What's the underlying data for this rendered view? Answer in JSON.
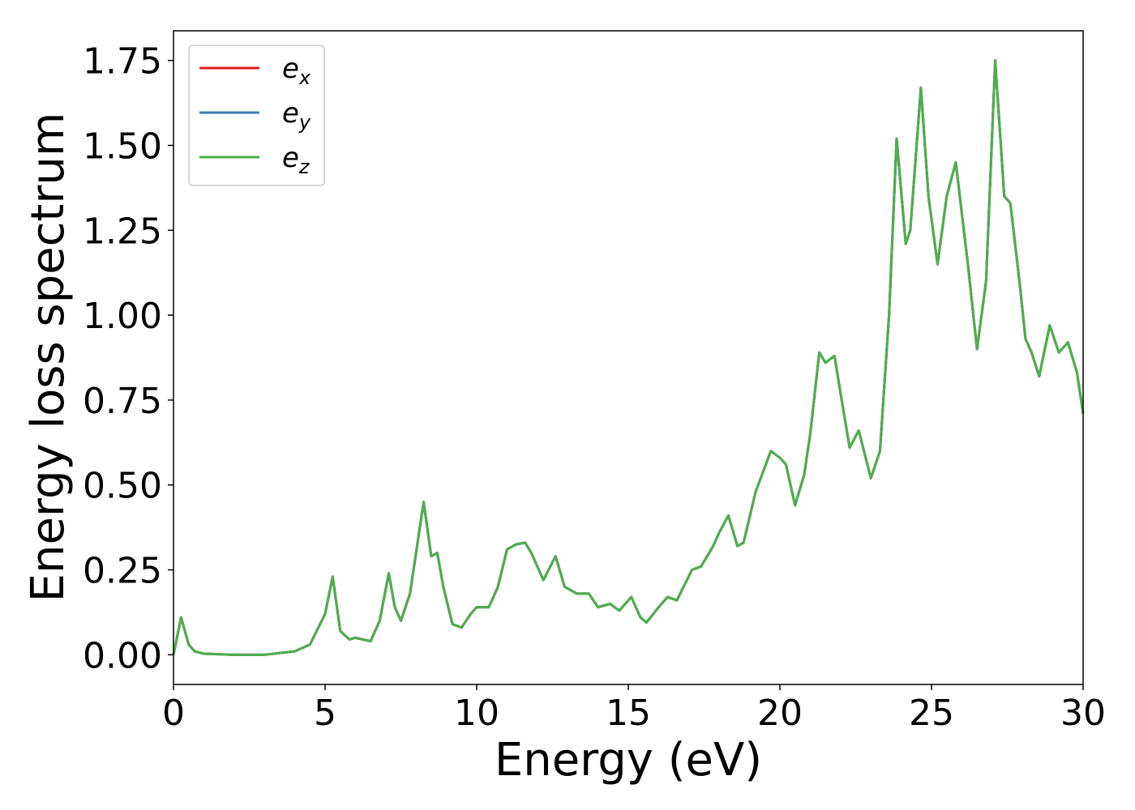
{
  "chart_data": {
    "type": "line",
    "xlabel": "Energy (eV)",
    "ylabel": "Energy loss spectrum",
    "x": [
      0,
      0.25,
      0.5,
      0.7,
      1,
      2,
      3,
      4,
      4.5,
      5.0,
      5.25,
      5.5,
      5.8,
      6.0,
      6.5,
      6.8,
      7.1,
      7.3,
      7.5,
      7.8,
      8.0,
      8.25,
      8.5,
      8.7,
      8.9,
      9.2,
      9.5,
      9.8,
      10,
      10.4,
      10.7,
      11,
      11.3,
      11.6,
      11.8,
      12.2,
      12.6,
      12.9,
      13.3,
      13.7,
      14.0,
      14.4,
      14.7,
      15.1,
      15.4,
      15.6,
      16.0,
      16.3,
      16.6,
      17.1,
      17.4,
      17.8,
      18.0,
      18.3,
      18.6,
      18.8,
      19.2,
      19.7,
      20.0,
      20.2,
      20.5,
      20.8,
      21.0,
      21.3,
      21.5,
      21.8,
      22.0,
      22.3,
      22.6,
      23.0,
      23.3,
      23.6,
      23.85,
      24.15,
      24.3,
      24.65,
      24.9,
      25.2,
      25.5,
      25.8,
      26.2,
      26.5,
      26.8,
      27.1,
      27.4,
      27.6,
      27.9,
      28.1,
      28.3,
      28.55,
      28.9,
      29.2,
      29.5,
      29.8,
      30
    ],
    "series": [
      {
        "name": "ex",
        "color": "#e41a1c",
        "values": [
          0.0,
          0.11,
          0.03,
          0.01,
          0.003,
          0.0,
          0.0,
          0.01,
          0.03,
          0.12,
          0.23,
          0.07,
          0.045,
          0.05,
          0.04,
          0.1,
          0.24,
          0.14,
          0.1,
          0.18,
          0.3,
          0.45,
          0.29,
          0.3,
          0.2,
          0.09,
          0.08,
          0.12,
          0.14,
          0.14,
          0.2,
          0.31,
          0.325,
          0.33,
          0.3,
          0.22,
          0.29,
          0.2,
          0.18,
          0.18,
          0.14,
          0.15,
          0.13,
          0.17,
          0.11,
          0.095,
          0.14,
          0.17,
          0.16,
          0.25,
          0.26,
          0.32,
          0.36,
          0.41,
          0.32,
          0.33,
          0.48,
          0.6,
          0.58,
          0.56,
          0.44,
          0.53,
          0.65,
          0.89,
          0.86,
          0.88,
          0.77,
          0.61,
          0.66,
          0.52,
          0.6,
          1.0,
          1.52,
          1.21,
          1.25,
          1.67,
          1.35,
          1.15,
          1.35,
          1.45,
          1.15,
          0.9,
          1.1,
          1.75,
          1.35,
          1.33,
          1.1,
          0.93,
          0.89,
          0.82,
          0.97,
          0.89,
          0.92,
          0.83,
          0.71
        ]
      },
      {
        "name": "ey",
        "color": "#377eb8",
        "values": [
          0.0,
          0.11,
          0.03,
          0.01,
          0.003,
          0.0,
          0.0,
          0.01,
          0.03,
          0.12,
          0.23,
          0.07,
          0.045,
          0.05,
          0.04,
          0.1,
          0.24,
          0.14,
          0.1,
          0.18,
          0.3,
          0.45,
          0.29,
          0.3,
          0.2,
          0.09,
          0.08,
          0.12,
          0.14,
          0.14,
          0.2,
          0.31,
          0.325,
          0.33,
          0.3,
          0.22,
          0.29,
          0.2,
          0.18,
          0.18,
          0.14,
          0.15,
          0.13,
          0.17,
          0.11,
          0.095,
          0.14,
          0.17,
          0.16,
          0.25,
          0.26,
          0.32,
          0.36,
          0.41,
          0.32,
          0.33,
          0.48,
          0.6,
          0.58,
          0.56,
          0.44,
          0.53,
          0.65,
          0.89,
          0.86,
          0.88,
          0.77,
          0.61,
          0.66,
          0.52,
          0.6,
          1.0,
          1.52,
          1.21,
          1.25,
          1.67,
          1.35,
          1.15,
          1.35,
          1.45,
          1.15,
          0.9,
          1.1,
          1.75,
          1.35,
          1.33,
          1.1,
          0.93,
          0.89,
          0.82,
          0.97,
          0.89,
          0.92,
          0.83,
          0.71
        ]
      },
      {
        "name": "ez",
        "color": "#4daf4a",
        "values": [
          0.0,
          0.11,
          0.03,
          0.01,
          0.003,
          0.0,
          0.0,
          0.01,
          0.03,
          0.12,
          0.23,
          0.07,
          0.045,
          0.05,
          0.04,
          0.1,
          0.24,
          0.14,
          0.1,
          0.18,
          0.3,
          0.45,
          0.29,
          0.3,
          0.2,
          0.09,
          0.08,
          0.12,
          0.14,
          0.14,
          0.2,
          0.31,
          0.325,
          0.33,
          0.3,
          0.22,
          0.29,
          0.2,
          0.18,
          0.18,
          0.14,
          0.15,
          0.13,
          0.17,
          0.11,
          0.095,
          0.14,
          0.17,
          0.16,
          0.25,
          0.26,
          0.32,
          0.36,
          0.41,
          0.32,
          0.33,
          0.48,
          0.6,
          0.58,
          0.56,
          0.44,
          0.53,
          0.65,
          0.89,
          0.86,
          0.88,
          0.77,
          0.61,
          0.66,
          0.52,
          0.6,
          1.0,
          1.52,
          1.21,
          1.25,
          1.67,
          1.35,
          1.15,
          1.35,
          1.45,
          1.15,
          0.9,
          1.1,
          1.75,
          1.35,
          1.33,
          1.1,
          0.93,
          0.89,
          0.82,
          0.97,
          0.89,
          0.92,
          0.83,
          0.71
        ]
      }
    ],
    "xlim": [
      0,
      30
    ],
    "xticks": [
      0,
      5,
      10,
      15,
      20,
      25,
      30
    ],
    "ylim": [
      -0.0875,
      1.8375
    ],
    "yticks": [
      {
        "value": 0,
        "label": "0.00"
      },
      {
        "value": 0.25,
        "label": "0.25"
      },
      {
        "value": 0.5,
        "label": "0.50"
      },
      {
        "value": 0.75,
        "label": "0.75"
      },
      {
        "value": 1.0,
        "label": "1.00"
      },
      {
        "value": 1.25,
        "label": "1.25"
      },
      {
        "value": 1.5,
        "label": "1.50"
      },
      {
        "value": 1.75,
        "label": "1.75"
      }
    ],
    "grid": false,
    "legend": "upper left"
  }
}
